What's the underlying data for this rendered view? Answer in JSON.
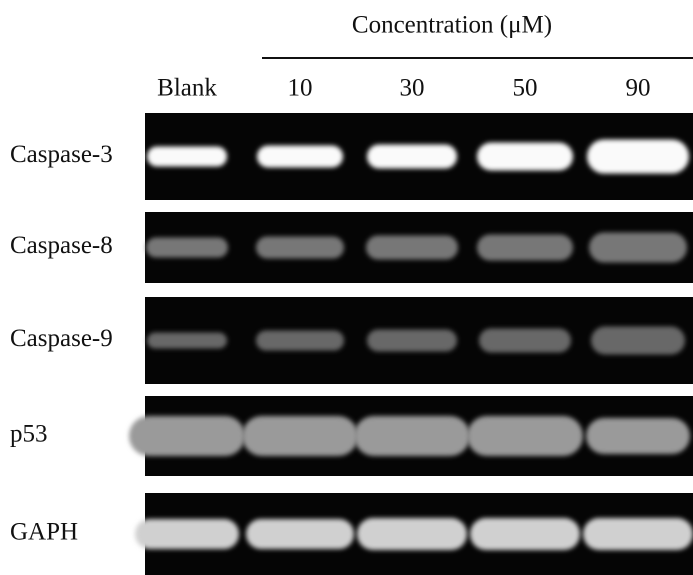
{
  "header": {
    "title": "Concentration (μM)"
  },
  "columns": [
    "Blank",
    "10",
    "30",
    "50",
    "90"
  ],
  "rows": [
    "Caspase-3",
    "Caspase-8",
    "Caspase-9",
    "p53",
    "GAPH"
  ]
}
